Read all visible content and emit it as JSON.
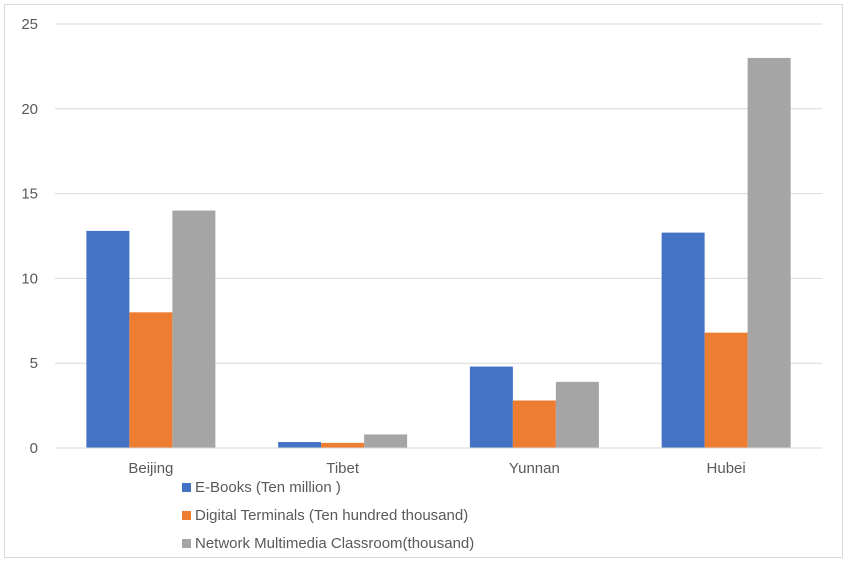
{
  "chart_data": {
    "type": "bar",
    "title": "",
    "xlabel": "",
    "ylabel": "",
    "categories": [
      "Beijing",
      "Tibet",
      "Yunnan",
      "Hubei"
    ],
    "ylim": [
      0,
      25
    ],
    "yticks": [
      0,
      5,
      10,
      15,
      20,
      25
    ],
    "grid": true,
    "legend_position": "bottom",
    "series": [
      {
        "name": "E-Books (Ten million )",
        "color": "#4472c4",
        "values": [
          12.8,
          0.35,
          4.8,
          12.7
        ]
      },
      {
        "name": "Digital Terminals (Ten hundred thousand)",
        "color": "#ed7d31",
        "values": [
          8.0,
          0.3,
          2.8,
          6.8
        ]
      },
      {
        "name": "Network Multimedia Classroom(thousand)",
        "color": "#a5a5a5",
        "values": [
          14.0,
          0.8,
          3.9,
          23.0
        ]
      }
    ]
  }
}
